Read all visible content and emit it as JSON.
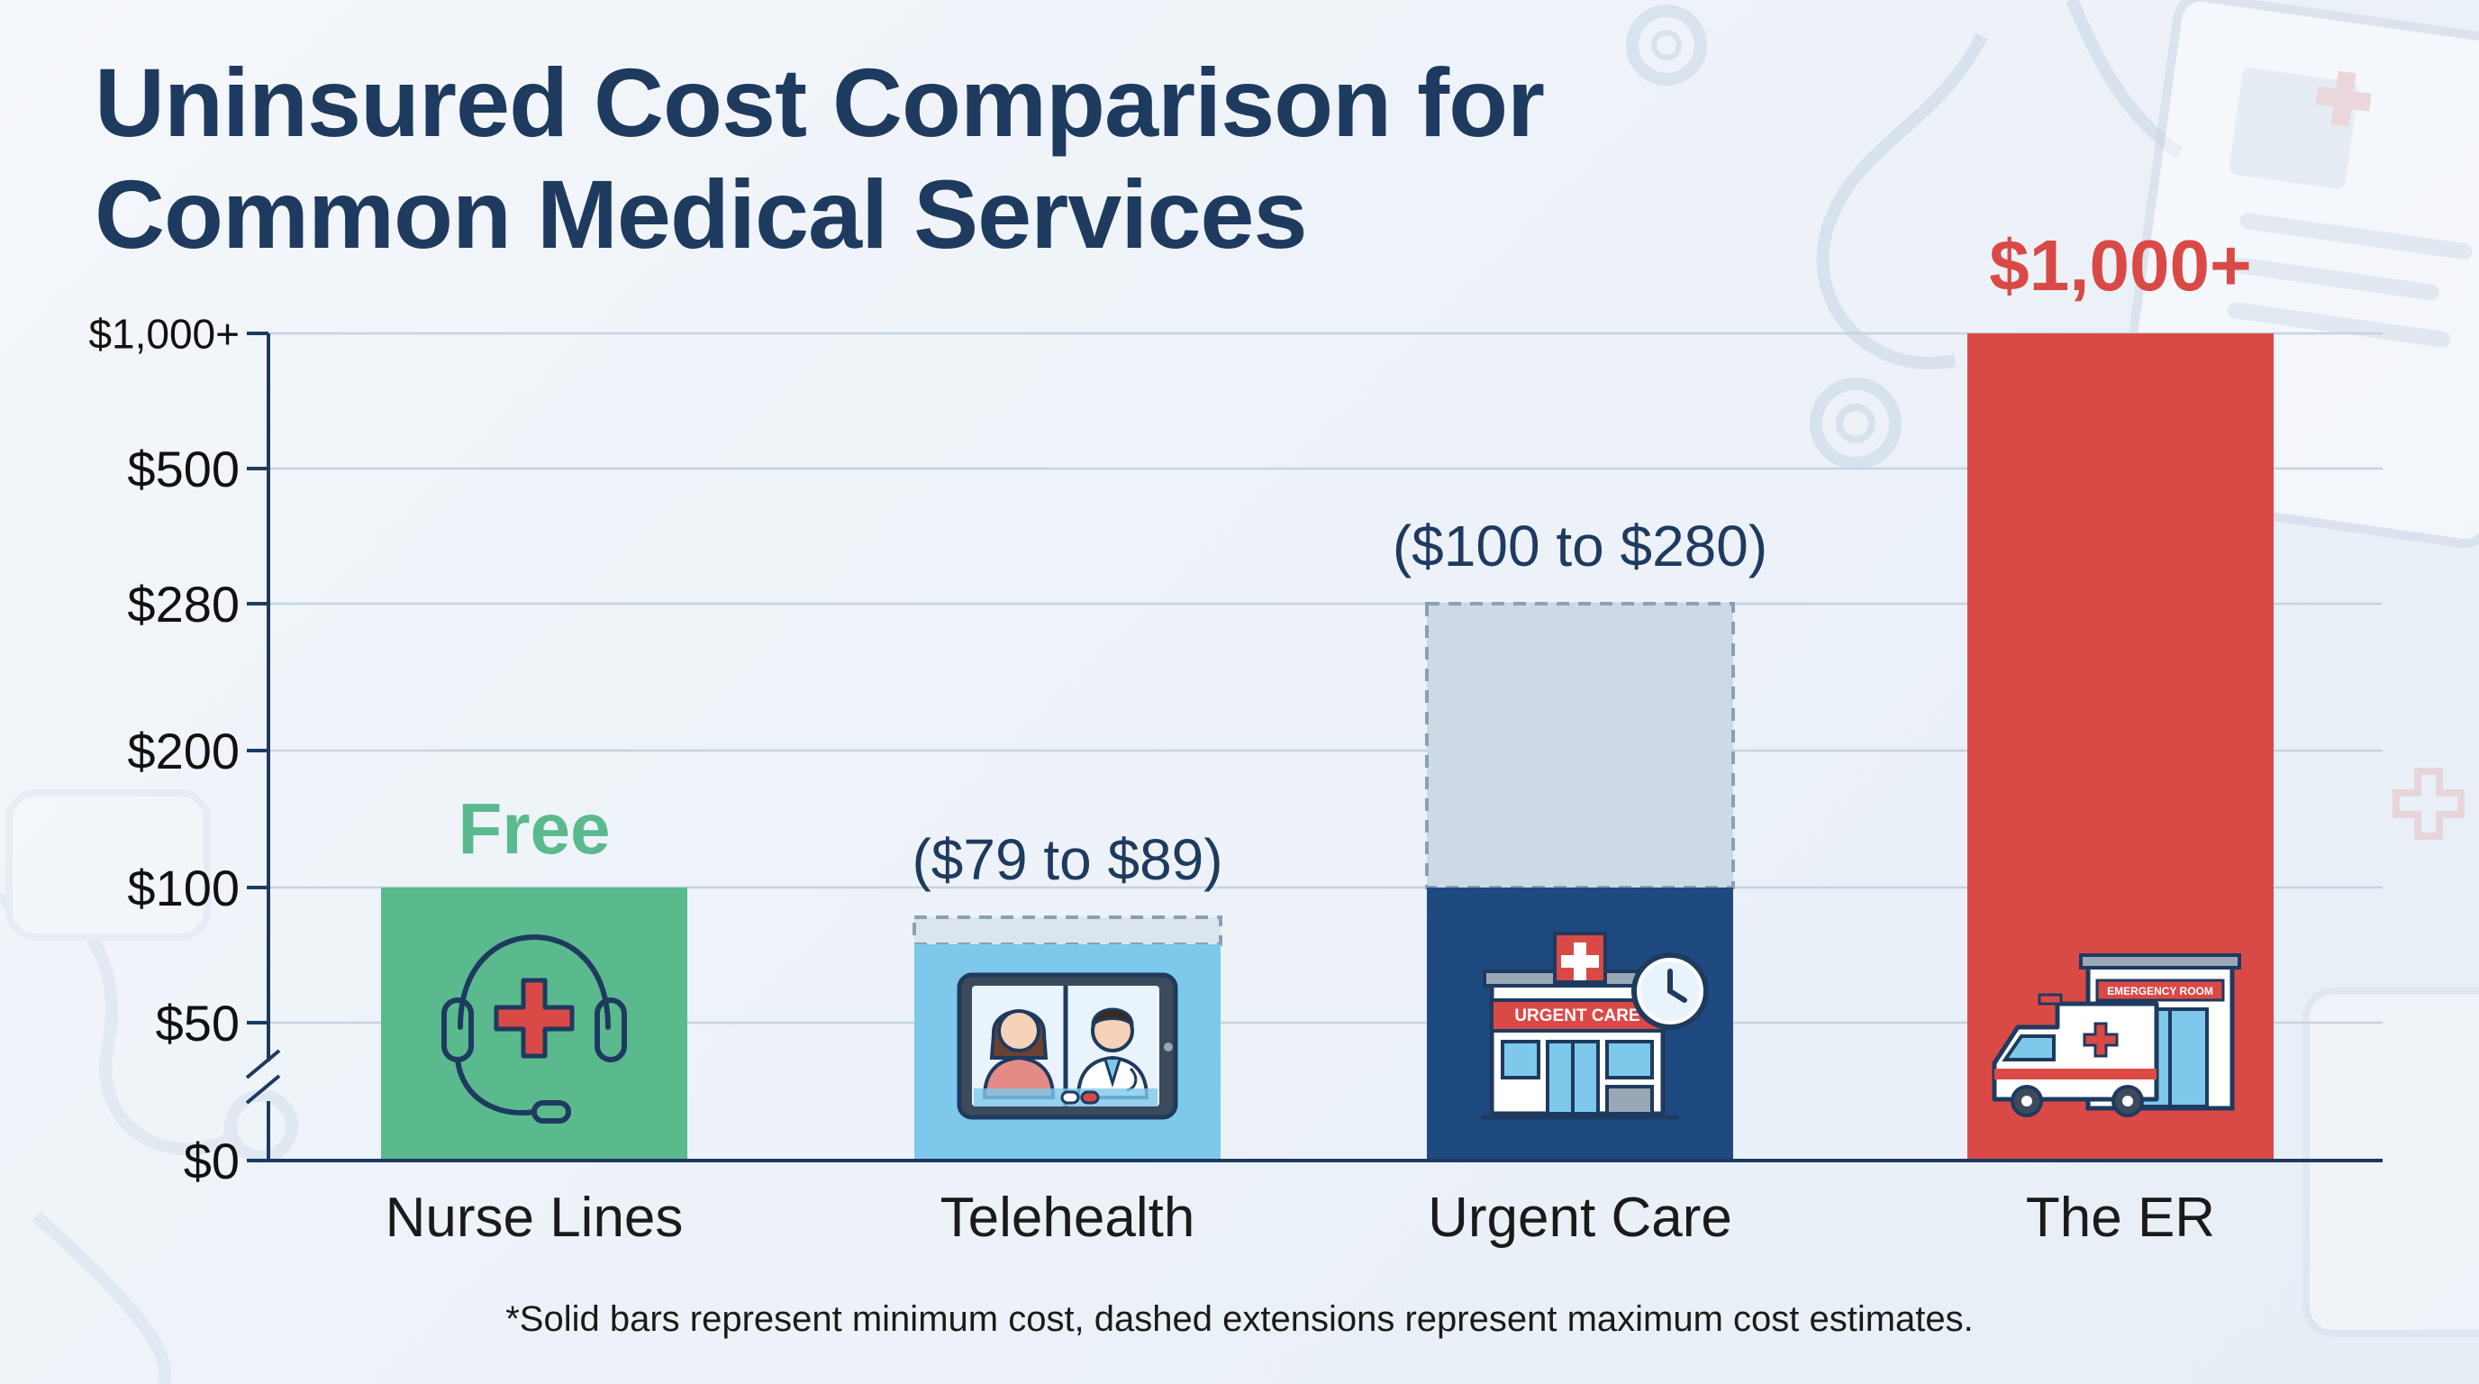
{
  "title": "Uninsured Cost Comparison for Common Medical Services",
  "footnote": "*Solid bars represent minimum cost, dashed extensions represent maximum cost estimates.",
  "colors": {
    "title": "#1e3a5f",
    "nurse": "#5bb98e",
    "telehealth": "#7ec8eb",
    "telehealth_ext": "#dbe5ee",
    "urgent": "#1f4a80",
    "urgent_ext": "#cdd9e5",
    "er": "#d94a47",
    "free_label": "#5bb98e",
    "er_label": "#d94a47",
    "range_label": "#1e3a5f",
    "axis": "#1e3a5f",
    "grid": "#c7d3df"
  },
  "chart_data": {
    "type": "bar",
    "title": "Uninsured Cost Comparison for Common Medical Services",
    "xlabel": "",
    "ylabel": "",
    "axis_break": true,
    "y_ticks": [
      "$1,000+",
      "$500",
      "$280",
      "$200",
      "$100",
      "$50",
      "$0"
    ],
    "categories": [
      "Nurse Lines",
      "Telehealth",
      "Urgent Care",
      "The ER"
    ],
    "series": [
      {
        "name": "Solid bars represent minimum cost",
        "values": [
          0,
          79,
          100,
          1000
        ]
      },
      {
        "name": "dashed extensions represent maximum cost estimates",
        "values": [
          null,
          89,
          280,
          null
        ]
      }
    ],
    "value_labels": [
      "Free",
      "($79 to $89)",
      "($100 to $280)",
      "$1,000+"
    ],
    "icons": [
      "headset-medical-icon",
      "video-call-doctor-icon",
      "urgent-care-building-icon",
      "ambulance-emergency-icon"
    ],
    "icon_text": {
      "urgent_sign": "URGENT CARE",
      "er_sign": "EMERGENCY ROOM"
    },
    "grid": true,
    "legend": "footnote-bottom"
  }
}
